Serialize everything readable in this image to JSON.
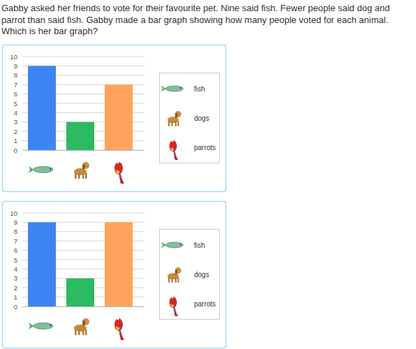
{
  "question": "Gabby asked her friends to vote for their favourite pet. Nine said fish. Fewer people said dog and parrot than said fish. Gabby made a bar graph showing how many people voted for each animal. Which is her bar graph?",
  "chart_data": [
    {
      "type": "bar",
      "categories": [
        "fish",
        "dogs",
        "parrots"
      ],
      "values": [
        9,
        3,
        7
      ],
      "colors": [
        "#3d85f2",
        "#2cba63",
        "#ffa35c"
      ],
      "ylim": [
        0,
        10
      ],
      "yticks": [
        0,
        1,
        2,
        3,
        4,
        5,
        6,
        7,
        8,
        9,
        10
      ],
      "grid": true,
      "legend": "right"
    },
    {
      "type": "bar",
      "categories": [
        "fish",
        "dogs",
        "parrots"
      ],
      "values": [
        9,
        3,
        9
      ],
      "colors": [
        "#3d85f2",
        "#2cba63",
        "#ffa35c"
      ],
      "ylim": [
        0,
        10
      ],
      "yticks": [
        0,
        1,
        2,
        3,
        4,
        5,
        6,
        7,
        8,
        9,
        10
      ],
      "grid": true,
      "legend": "right"
    }
  ]
}
